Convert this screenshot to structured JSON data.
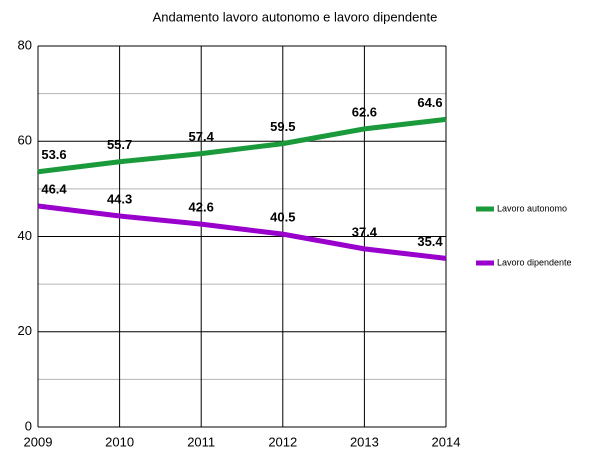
{
  "chart_data": {
    "type": "line",
    "title": "Andamento lavoro autonomo e lavoro dipendente",
    "x": [
      2009,
      2010,
      2011,
      2012,
      2013,
      2014
    ],
    "xlim": [
      2009,
      2014
    ],
    "xticks": [
      2009,
      2010,
      2011,
      2012,
      2013,
      2014
    ],
    "ylim": [
      0,
      80
    ],
    "yticks": [
      0,
      20,
      40,
      60,
      80
    ],
    "y_minor_ticks": [
      10,
      30,
      50,
      70
    ],
    "grid": true,
    "legend": "right",
    "series": [
      {
        "name": "Lavoro autonomo",
        "color": "#1a9a3a",
        "values": [
          53.6,
          55.7,
          57.4,
          59.5,
          62.6,
          64.6
        ]
      },
      {
        "name": "Lavoro dipendente",
        "color": "#9900cc",
        "values": [
          46.4,
          44.3,
          42.6,
          40.5,
          37.4,
          35.4
        ]
      }
    ]
  }
}
